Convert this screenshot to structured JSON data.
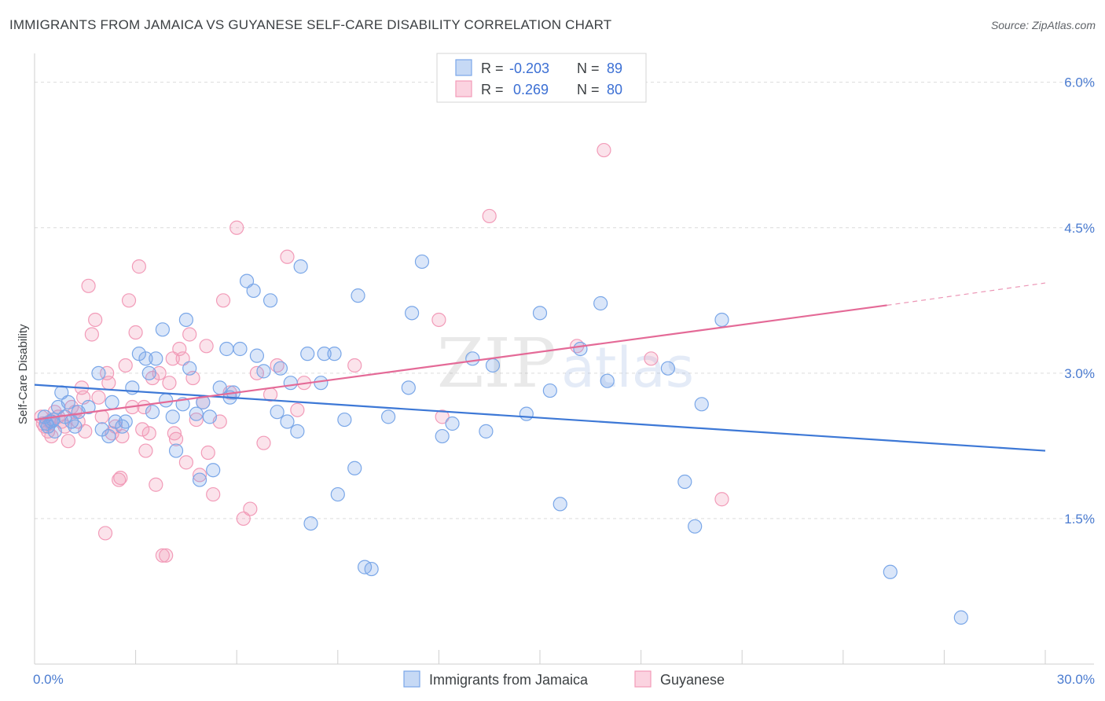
{
  "title": "IMMIGRANTS FROM JAMAICA VS GUYANESE SELF-CARE DISABILITY CORRELATION CHART",
  "source": "Source: ZipAtlas.com",
  "watermark": {
    "zip": "ZIP",
    "atlas": "atlas"
  },
  "legend_top": {
    "rows": [
      {
        "r_label": "R =",
        "r_value": "-0.203",
        "n_label": "N =",
        "n_value": "89",
        "color": "#7aa7e8"
      },
      {
        "r_label": "R =",
        "r_value": " 0.269",
        "n_label": "N =",
        "n_value": "80",
        "color": "#f29bb8"
      }
    ]
  },
  "legend_bottom": [
    {
      "label": "Immigrants from Jamaica",
      "color": "#7aa7e8"
    },
    {
      "label": "Guyanese",
      "color": "#f29bb8"
    }
  ],
  "chart_data": {
    "type": "scatter",
    "title": "IMMIGRANTS FROM JAMAICA VS GUYANESE SELF-CARE DISABILITY CORRELATION CHART",
    "xlabel": "",
    "ylabel": "Self-Care Disability",
    "xlim": [
      0,
      30
    ],
    "ylim": [
      0,
      6.2
    ],
    "y_ticks": [
      1.5,
      3.0,
      4.5,
      6.0
    ],
    "y_tick_labels": [
      "1.5%",
      "3.0%",
      "4.5%",
      "6.0%"
    ],
    "x_tick_labels": [
      "0.0%",
      "30.0%"
    ],
    "grid": "horizontal dashed",
    "series": [
      {
        "name": "Immigrants from Jamaica",
        "color": "#7aa7e8",
        "trend": {
          "x": [
            0,
            30
          ],
          "y": [
            2.88,
            2.2
          ]
        },
        "points": [
          [
            0.3,
            2.55
          ],
          [
            0.4,
            2.45
          ],
          [
            0.5,
            2.5
          ],
          [
            0.6,
            2.4
          ],
          [
            0.7,
            2.65
          ],
          [
            0.8,
            2.8
          ],
          [
            0.9,
            2.55
          ],
          [
            1.0,
            2.7
          ],
          [
            1.1,
            2.5
          ],
          [
            1.3,
            2.6
          ],
          [
            1.2,
            2.45
          ],
          [
            1.6,
            2.65
          ],
          [
            1.9,
            3.0
          ],
          [
            2.0,
            2.42
          ],
          [
            2.2,
            2.35
          ],
          [
            2.3,
            2.7
          ],
          [
            2.4,
            2.5
          ],
          [
            2.6,
            2.45
          ],
          [
            2.7,
            2.5
          ],
          [
            2.9,
            2.85
          ],
          [
            3.1,
            3.2
          ],
          [
            3.3,
            3.15
          ],
          [
            3.4,
            3.0
          ],
          [
            3.5,
            2.6
          ],
          [
            3.6,
            3.15
          ],
          [
            3.8,
            3.45
          ],
          [
            3.9,
            2.72
          ],
          [
            4.1,
            2.55
          ],
          [
            4.2,
            2.2
          ],
          [
            4.4,
            2.68
          ],
          [
            4.5,
            3.55
          ],
          [
            4.6,
            3.05
          ],
          [
            4.8,
            2.58
          ],
          [
            4.9,
            1.9
          ],
          [
            5.0,
            2.7
          ],
          [
            5.2,
            2.55
          ],
          [
            5.3,
            2.0
          ],
          [
            5.5,
            2.85
          ],
          [
            5.7,
            3.25
          ],
          [
            5.8,
            2.75
          ],
          [
            5.9,
            2.8
          ],
          [
            6.1,
            3.25
          ],
          [
            6.3,
            3.95
          ],
          [
            6.5,
            3.85
          ],
          [
            6.6,
            3.18
          ],
          [
            6.8,
            3.02
          ],
          [
            7.0,
            3.75
          ],
          [
            7.2,
            2.6
          ],
          [
            7.3,
            3.05
          ],
          [
            7.5,
            2.5
          ],
          [
            7.6,
            2.9
          ],
          [
            7.8,
            2.4
          ],
          [
            7.9,
            4.1
          ],
          [
            8.1,
            3.2
          ],
          [
            8.2,
            1.45
          ],
          [
            8.5,
            2.9
          ],
          [
            8.6,
            3.2
          ],
          [
            8.9,
            3.2
          ],
          [
            9.0,
            1.75
          ],
          [
            9.2,
            2.52
          ],
          [
            9.5,
            2.02
          ],
          [
            9.6,
            3.8
          ],
          [
            9.8,
            1.0
          ],
          [
            10.0,
            0.98
          ],
          [
            10.5,
            2.55
          ],
          [
            11.1,
            2.85
          ],
          [
            11.2,
            3.62
          ],
          [
            11.5,
            4.15
          ],
          [
            12.1,
            2.35
          ],
          [
            12.4,
            2.48
          ],
          [
            13.0,
            3.15
          ],
          [
            13.4,
            2.4
          ],
          [
            13.6,
            3.08
          ],
          [
            14.6,
            2.58
          ],
          [
            15.0,
            3.62
          ],
          [
            15.3,
            2.82
          ],
          [
            15.6,
            1.65
          ],
          [
            16.2,
            3.25
          ],
          [
            16.8,
            3.72
          ],
          [
            17.0,
            2.92
          ],
          [
            18.8,
            3.05
          ],
          [
            19.3,
            1.88
          ],
          [
            19.6,
            1.42
          ],
          [
            19.8,
            2.68
          ],
          [
            20.4,
            3.55
          ],
          [
            25.4,
            0.95
          ],
          [
            27.5,
            0.48
          ],
          [
            0.35,
            2.48
          ],
          [
            0.55,
            2.52
          ]
        ]
      },
      {
        "name": "Guyanese",
        "color": "#f29bb8",
        "trend": {
          "x": [
            0,
            25.3
          ],
          "y": [
            2.52,
            3.7
          ]
        },
        "trend_extension": {
          "x": [
            25.3,
            30
          ],
          "y": [
            3.7,
            3.93
          ]
        },
        "points": [
          [
            0.2,
            2.55
          ],
          [
            0.3,
            2.45
          ],
          [
            0.4,
            2.4
          ],
          [
            0.5,
            2.35
          ],
          [
            0.6,
            2.6
          ],
          [
            0.7,
            2.55
          ],
          [
            0.8,
            2.5
          ],
          [
            0.9,
            2.45
          ],
          [
            1.0,
            2.3
          ],
          [
            1.1,
            2.65
          ],
          [
            1.2,
            2.6
          ],
          [
            1.3,
            2.5
          ],
          [
            1.4,
            2.85
          ],
          [
            1.5,
            2.4
          ],
          [
            1.6,
            3.9
          ],
          [
            1.7,
            3.4
          ],
          [
            1.8,
            3.55
          ],
          [
            1.9,
            2.75
          ],
          [
            2.0,
            2.55
          ],
          [
            2.1,
            1.35
          ],
          [
            2.2,
            2.9
          ],
          [
            2.3,
            2.38
          ],
          [
            2.4,
            2.45
          ],
          [
            2.5,
            1.9
          ],
          [
            2.6,
            2.35
          ],
          [
            2.7,
            3.08
          ],
          [
            2.8,
            3.75
          ],
          [
            2.9,
            2.65
          ],
          [
            3.0,
            3.42
          ],
          [
            3.1,
            4.1
          ],
          [
            3.2,
            2.42
          ],
          [
            3.3,
            2.2
          ],
          [
            3.4,
            2.38
          ],
          [
            3.5,
            2.95
          ],
          [
            3.6,
            1.85
          ],
          [
            3.7,
            3.0
          ],
          [
            3.8,
            1.12
          ],
          [
            3.9,
            1.12
          ],
          [
            4.0,
            2.9
          ],
          [
            4.1,
            3.15
          ],
          [
            4.2,
            2.32
          ],
          [
            4.3,
            3.25
          ],
          [
            4.4,
            3.15
          ],
          [
            4.5,
            2.08
          ],
          [
            4.6,
            3.4
          ],
          [
            4.7,
            2.95
          ],
          [
            4.8,
            2.52
          ],
          [
            4.9,
            1.95
          ],
          [
            5.0,
            2.7
          ],
          [
            5.1,
            3.28
          ],
          [
            5.3,
            1.75
          ],
          [
            5.5,
            2.5
          ],
          [
            5.6,
            3.75
          ],
          [
            5.8,
            2.8
          ],
          [
            6.0,
            4.5
          ],
          [
            6.2,
            1.5
          ],
          [
            6.4,
            1.6
          ],
          [
            6.6,
            3.0
          ],
          [
            6.8,
            2.28
          ],
          [
            7.0,
            2.78
          ],
          [
            7.2,
            3.08
          ],
          [
            7.5,
            4.2
          ],
          [
            7.8,
            2.62
          ],
          [
            8.0,
            2.9
          ],
          [
            9.5,
            3.08
          ],
          [
            12.0,
            3.55
          ],
          [
            12.1,
            2.55
          ],
          [
            13.5,
            4.62
          ],
          [
            16.1,
            3.28
          ],
          [
            16.9,
            5.3
          ],
          [
            18.3,
            3.15
          ],
          [
            20.4,
            1.7
          ],
          [
            0.25,
            2.48
          ],
          [
            0.45,
            2.5
          ],
          [
            1.45,
            2.75
          ],
          [
            2.15,
            3.0
          ],
          [
            2.55,
            1.92
          ],
          [
            3.25,
            2.65
          ],
          [
            4.15,
            2.38
          ],
          [
            5.15,
            2.18
          ]
        ]
      }
    ]
  }
}
